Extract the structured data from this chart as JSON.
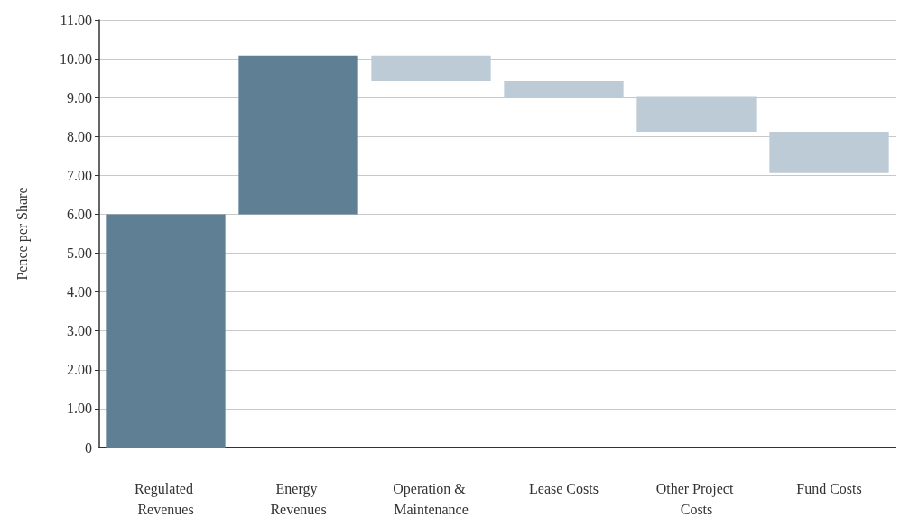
{
  "chart_data": {
    "type": "bar",
    "ylabel": "Pence per Share",
    "categories": [
      "Regulated Revenues",
      "Energy Revenues",
      "Operation & Maintenance",
      "Lease Costs",
      "Other Project Costs",
      "Fund Costs"
    ],
    "base": [
      0,
      6.0,
      10.08,
      9.42,
      9.04,
      8.12
    ],
    "values": [
      6.0,
      4.08,
      -0.66,
      -0.4,
      -0.92,
      -1.06
    ],
    "colors": [
      "#5f7f94",
      "#5f7f94",
      "#bccbd5",
      "#bccbd5",
      "#bccbd5",
      "#bccbd5"
    ],
    "ylim": [
      0,
      11
    ],
    "yticks": [
      0,
      {
        "value": 1,
        "label": "1.00"
      },
      {
        "value": 2,
        "label": "2.00"
      },
      {
        "value": 3,
        "label": "3.00"
      },
      {
        "value": 4,
        "label": "4.00"
      },
      {
        "value": 5,
        "label": "5.00"
      },
      {
        "value": 6,
        "label": "6.00"
      },
      {
        "value": 7,
        "label": "7.00"
      },
      {
        "value": 8,
        "label": "8.00"
      },
      {
        "value": 9,
        "label": "9.00"
      },
      {
        "value": 10,
        "label": "10.00"
      },
      {
        "value": 11,
        "label": "11.00"
      }
    ],
    "grid": "y"
  }
}
